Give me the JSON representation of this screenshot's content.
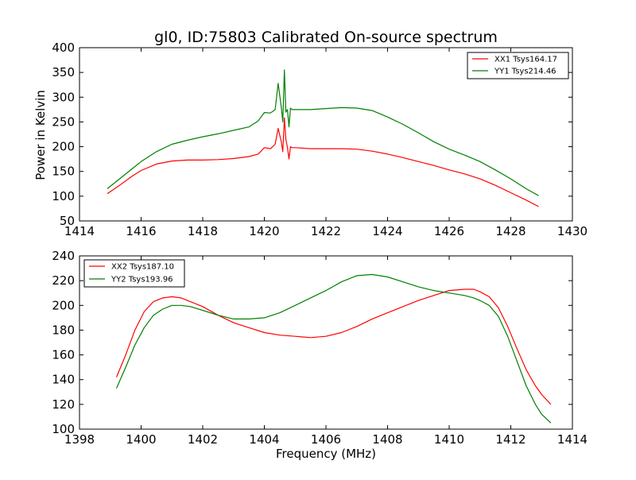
{
  "chart_data": [
    {
      "type": "line",
      "title": "gl0, ID:75803 Calibrated On-source spectrum",
      "xlabel": "",
      "ylabel": "Power in Kelvin",
      "xlim": [
        1414,
        1430
      ],
      "ylim": [
        50,
        400
      ],
      "xticks": [
        1414,
        1416,
        1418,
        1420,
        1422,
        1424,
        1426,
        1428,
        1430
      ],
      "yticks": [
        50,
        100,
        150,
        200,
        250,
        300,
        350,
        400
      ],
      "legend_position": "top-right",
      "series": [
        {
          "name": "XX1 Tsys164.17",
          "color": "#ff0000",
          "x": [
            1414.9,
            1415.3,
            1415.7,
            1416.0,
            1416.5,
            1417.0,
            1417.5,
            1418.0,
            1418.5,
            1419.0,
            1419.5,
            1419.8,
            1420.0,
            1420.2,
            1420.35,
            1420.45,
            1420.55,
            1420.6,
            1420.65,
            1420.7,
            1420.75,
            1420.8,
            1420.85,
            1420.9,
            1421.0,
            1421.5,
            1422.0,
            1422.5,
            1423.0,
            1423.5,
            1424.0,
            1424.5,
            1425.0,
            1425.5,
            1426.0,
            1426.5,
            1427.0,
            1427.5,
            1428.0,
            1428.5,
            1428.9
          ],
          "y": [
            105,
            122,
            140,
            152,
            165,
            171,
            173,
            173,
            174,
            176,
            180,
            185,
            198,
            196,
            205,
            237,
            210,
            190,
            258,
            215,
            198,
            175,
            200,
            198,
            198,
            196,
            196,
            196,
            195,
            191,
            185,
            178,
            170,
            162,
            153,
            145,
            135,
            122,
            107,
            92,
            79
          ]
        },
        {
          "name": "YY1 Tsys214.46",
          "color": "#008000",
          "x": [
            1414.9,
            1415.3,
            1415.7,
            1416.0,
            1416.5,
            1417.0,
            1417.5,
            1418.0,
            1418.5,
            1419.0,
            1419.5,
            1419.8,
            1420.0,
            1420.2,
            1420.35,
            1420.45,
            1420.55,
            1420.6,
            1420.65,
            1420.7,
            1420.75,
            1420.8,
            1420.85,
            1420.9,
            1421.0,
            1421.5,
            1422.0,
            1422.5,
            1423.0,
            1423.5,
            1424.0,
            1424.5,
            1425.0,
            1425.5,
            1426.0,
            1426.5,
            1427.0,
            1427.5,
            1428.0,
            1428.5,
            1428.9
          ],
          "y": [
            115,
            135,
            155,
            170,
            190,
            205,
            213,
            220,
            226,
            233,
            240,
            252,
            269,
            268,
            275,
            328,
            280,
            250,
            355,
            270,
            275,
            240,
            278,
            275,
            275,
            275,
            277,
            279,
            278,
            273,
            260,
            245,
            228,
            210,
            195,
            183,
            170,
            153,
            135,
            115,
            101
          ]
        }
      ]
    },
    {
      "type": "line",
      "title": "",
      "xlabel": "Frequency (MHz)",
      "ylabel": "",
      "xlim": [
        1398,
        1414
      ],
      "ylim": [
        100,
        240
      ],
      "xticks": [
        1398,
        1400,
        1402,
        1404,
        1406,
        1408,
        1410,
        1412,
        1414
      ],
      "yticks": [
        100,
        120,
        140,
        160,
        180,
        200,
        220,
        240
      ],
      "legend_position": "top-left",
      "series": [
        {
          "name": "XX2 Tsys187.10",
          "color": "#ff0000",
          "x": [
            1399.2,
            1399.5,
            1399.8,
            1400.1,
            1400.4,
            1400.7,
            1401.0,
            1401.3,
            1401.6,
            1402.0,
            1402.5,
            1403.0,
            1403.5,
            1404.0,
            1404.5,
            1405.0,
            1405.5,
            1406.0,
            1406.5,
            1407.0,
            1407.5,
            1408.0,
            1408.5,
            1409.0,
            1409.5,
            1410.0,
            1410.5,
            1410.8,
            1411.0,
            1411.3,
            1411.6,
            1411.9,
            1412.2,
            1412.5,
            1412.8,
            1413.0,
            1413.3
          ],
          "y": [
            142,
            160,
            180,
            195,
            203,
            206,
            207,
            206,
            203,
            199,
            192,
            186,
            182,
            178,
            176,
            175,
            174,
            175,
            178,
            183,
            189,
            194,
            199,
            204,
            208,
            212,
            213,
            213,
            211,
            207,
            198,
            183,
            165,
            148,
            135,
            128,
            120
          ]
        },
        {
          "name": "YY2 Tsys193.96",
          "color": "#008000",
          "x": [
            1399.2,
            1399.5,
            1399.8,
            1400.1,
            1400.4,
            1400.7,
            1401.0,
            1401.3,
            1401.6,
            1402.0,
            1402.5,
            1403.0,
            1403.5,
            1404.0,
            1404.5,
            1405.0,
            1405.5,
            1406.0,
            1406.5,
            1407.0,
            1407.5,
            1408.0,
            1408.5,
            1409.0,
            1409.5,
            1410.0,
            1410.5,
            1410.8,
            1411.0,
            1411.3,
            1411.6,
            1411.9,
            1412.2,
            1412.5,
            1412.8,
            1413.0,
            1413.3
          ],
          "y": [
            133,
            150,
            168,
            182,
            192,
            197,
            200,
            200,
            199,
            196,
            192,
            189,
            189,
            190,
            194,
            200,
            206,
            212,
            219,
            224,
            225,
            223,
            219,
            215,
            212,
            210,
            208,
            206,
            204,
            200,
            191,
            175,
            155,
            135,
            120,
            112,
            105
          ]
        }
      ]
    }
  ]
}
